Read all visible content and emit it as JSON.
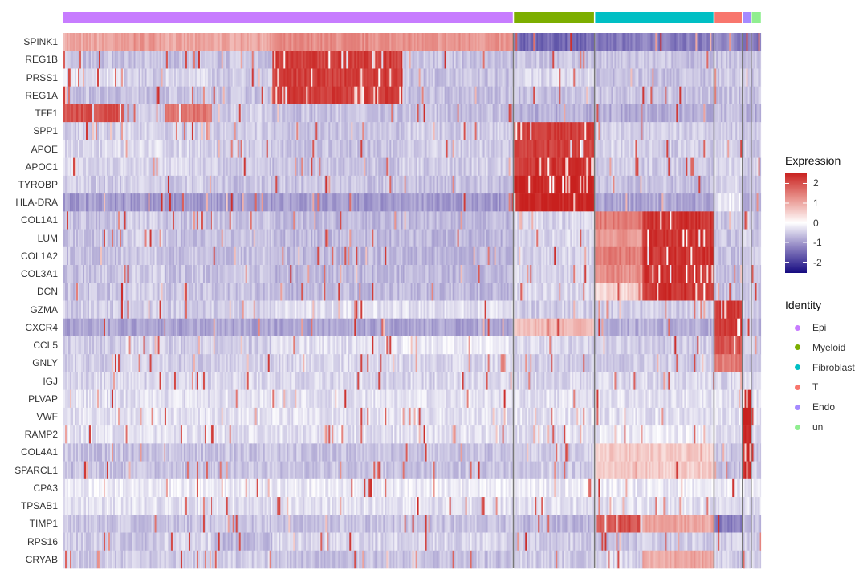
{
  "chart_data": {
    "type": "heatmap",
    "title": "",
    "genes": [
      "SPINK1",
      "REG1B",
      "PRSS1",
      "REG1A",
      "TFF1",
      "SPP1",
      "APOE",
      "APOC1",
      "TYROBP",
      "HLA-DRA",
      "COL1A1",
      "LUM",
      "COL1A2",
      "COL3A1",
      "DCN",
      "GZMA",
      "CXCR4",
      "CCL5",
      "GNLY",
      "IGJ",
      "PLVAP",
      "VWF",
      "RAMP2",
      "COL4A1",
      "SPARCL1",
      "CPA3",
      "TPSAB1",
      "TIMP1",
      "RPS16",
      "CRYAB"
    ],
    "groups": [
      {
        "name": "Epi",
        "color": "#C77CFF",
        "cell_fraction": 0.646
      },
      {
        "name": "Myeloid",
        "color": "#7CAE00",
        "cell_fraction": 0.115
      },
      {
        "name": "Fibroblast",
        "color": "#00BFC4",
        "cell_fraction": 0.17
      },
      {
        "name": "T",
        "color": "#F8766D",
        "cell_fraction": 0.039
      },
      {
        "name": "Endo",
        "color": "#A58AFF",
        "cell_fraction": 0.011
      },
      {
        "name": "un",
        "color": "#90EE90",
        "cell_fraction": 0.013
      }
    ],
    "segments": [
      {
        "group": "Epi",
        "fraction_of_group": 0.135
      },
      {
        "group": "Epi",
        "fraction_of_group": 0.09
      },
      {
        "group": "Epi",
        "fraction_of_group": 0.105
      },
      {
        "group": "Epi",
        "fraction_of_group": 0.135
      },
      {
        "group": "Epi",
        "fraction_of_group": 0.29
      },
      {
        "group": "Epi",
        "fraction_of_group": 0.245
      },
      {
        "group": "Myeloid",
        "fraction_of_group": 1
      },
      {
        "group": "Fibroblast",
        "fraction_of_group": 0.4
      },
      {
        "group": "Fibroblast",
        "fraction_of_group": 0.6
      },
      {
        "group": "T",
        "fraction_of_group": 1
      },
      {
        "group": "Endo",
        "fraction_of_group": 1
      },
      {
        "group": "un",
        "fraction_of_group": 1
      }
    ],
    "mean_expression": [
      [
        1.0,
        1.2,
        1.0,
        1.0,
        1.3,
        1.2,
        -1.5,
        -1.3,
        -1.3,
        -1.2,
        -1.3,
        -1.3
      ],
      [
        -0.6,
        -0.6,
        -0.6,
        -0.6,
        2.2,
        -0.6,
        -0.6,
        -0.6,
        -0.6,
        -0.6,
        -0.6,
        -0.6
      ],
      [
        -0.3,
        -0.5,
        -0.4,
        -0.5,
        2.2,
        -0.6,
        -0.4,
        -0.6,
        -0.6,
        -0.5,
        -0.6,
        -0.6
      ],
      [
        -0.6,
        -0.6,
        -0.6,
        -0.6,
        2.2,
        -0.6,
        -0.6,
        -0.6,
        -0.6,
        -0.6,
        -0.6,
        -0.6
      ],
      [
        2.0,
        -0.5,
        1.6,
        -0.5,
        -0.6,
        -0.6,
        -0.8,
        -0.8,
        -0.8,
        -0.7,
        -0.8,
        -0.8
      ],
      [
        -0.5,
        -0.4,
        -0.5,
        -0.5,
        -0.6,
        -0.5,
        2.2,
        -0.5,
        -0.5,
        -0.5,
        -0.6,
        -0.6
      ],
      [
        -0.4,
        -0.3,
        -0.4,
        -0.5,
        -0.6,
        -0.5,
        2.2,
        -0.4,
        -0.5,
        -0.4,
        -0.5,
        -0.5
      ],
      [
        -0.4,
        -0.4,
        -0.4,
        -0.5,
        -0.6,
        -0.5,
        2.3,
        -0.5,
        -0.5,
        -0.4,
        -0.5,
        -0.5
      ],
      [
        -0.5,
        -0.5,
        -0.5,
        -0.6,
        -0.6,
        -0.6,
        2.5,
        -0.6,
        -0.6,
        -0.4,
        -0.6,
        -0.6
      ],
      [
        -1.0,
        -1.0,
        -1.0,
        -1.0,
        -1.0,
        -1.0,
        2.5,
        -0.9,
        -0.9,
        -0.2,
        -0.8,
        -0.8
      ],
      [
        -0.6,
        -0.5,
        -0.6,
        -0.6,
        -0.7,
        -0.7,
        -0.4,
        1.5,
        2.3,
        -0.6,
        -0.5,
        -0.6
      ],
      [
        -0.6,
        -0.5,
        -0.6,
        -0.6,
        -0.7,
        -0.7,
        -0.4,
        1.2,
        2.3,
        -0.6,
        -0.5,
        -0.6
      ],
      [
        -0.6,
        -0.5,
        -0.6,
        -0.6,
        -0.7,
        -0.7,
        -0.4,
        1.5,
        2.3,
        -0.6,
        -0.5,
        -0.6
      ],
      [
        -0.6,
        -0.5,
        -0.6,
        -0.6,
        -0.7,
        -0.7,
        -0.4,
        1.3,
        2.3,
        -0.6,
        -0.5,
        -0.6
      ],
      [
        -0.6,
        -0.5,
        -0.6,
        -0.6,
        -0.7,
        -0.7,
        -0.4,
        0.5,
        2.3,
        -0.6,
        -0.5,
        -0.6
      ],
      [
        -0.5,
        -0.5,
        -0.5,
        -0.5,
        -0.3,
        -0.3,
        -0.5,
        -0.5,
        -0.5,
        2.2,
        -0.5,
        -0.5
      ],
      [
        -0.9,
        -0.9,
        -0.9,
        -0.9,
        -0.9,
        -0.9,
        0.8,
        -0.8,
        -0.8,
        2.2,
        -0.6,
        -0.7
      ],
      [
        -0.5,
        -0.4,
        -0.5,
        -0.5,
        -0.3,
        -0.2,
        -0.4,
        -0.5,
        -0.5,
        2.0,
        -0.5,
        -0.5
      ],
      [
        -0.5,
        -0.4,
        -0.5,
        -0.5,
        -0.4,
        -0.4,
        -0.5,
        -0.5,
        -0.5,
        1.5,
        -0.5,
        -0.5
      ],
      [
        -0.4,
        -0.4,
        -0.4,
        -0.4,
        -0.4,
        -0.4,
        -0.4,
        -0.4,
        -0.4,
        -0.4,
        -0.4,
        -0.4
      ],
      [
        -0.3,
        -0.3,
        -0.3,
        -0.3,
        -0.3,
        -0.3,
        -0.3,
        -0.3,
        -0.3,
        -0.3,
        2.5,
        -0.3
      ],
      [
        -0.3,
        -0.3,
        -0.3,
        -0.3,
        -0.3,
        -0.3,
        -0.3,
        -0.3,
        -0.3,
        -0.3,
        2.5,
        -0.3
      ],
      [
        -0.3,
        -0.3,
        -0.3,
        -0.3,
        -0.3,
        -0.3,
        -0.3,
        -0.2,
        -0.2,
        -0.3,
        2.5,
        -0.3
      ],
      [
        -0.6,
        -0.6,
        -0.6,
        -0.6,
        -0.6,
        -0.6,
        -0.5,
        0.6,
        0.6,
        -0.6,
        2.5,
        -0.5
      ],
      [
        -0.6,
        -0.6,
        -0.6,
        -0.6,
        -0.6,
        -0.6,
        -0.5,
        0.6,
        0.6,
        -0.6,
        2.5,
        -0.5
      ],
      [
        -0.2,
        -0.2,
        -0.2,
        -0.2,
        -0.2,
        -0.2,
        -0.2,
        -0.2,
        -0.2,
        -0.2,
        -0.2,
        -0.2
      ],
      [
        -0.3,
        -0.3,
        -0.3,
        -0.3,
        -0.3,
        -0.3,
        -0.3,
        -0.3,
        -0.3,
        -0.3,
        -0.3,
        -0.3
      ],
      [
        -0.6,
        -0.6,
        -0.6,
        -0.6,
        -0.6,
        -0.6,
        -0.7,
        2.0,
        1.0,
        -1.3,
        -0.6,
        -0.6
      ],
      [
        -0.5,
        -0.6,
        -0.4,
        -0.7,
        -0.4,
        -0.4,
        -0.5,
        -0.6,
        -0.5,
        -0.5,
        -0.5,
        -0.5
      ],
      [
        -0.5,
        -0.5,
        -0.5,
        -0.5,
        -0.6,
        -0.6,
        -0.5,
        -0.4,
        1.0,
        -0.5,
        -0.5,
        -0.5
      ]
    ],
    "color_scale": {
      "title": "Expression",
      "low": "#150A80",
      "mid": "#FFFFFF",
      "high": "#C8201E",
      "ticks": [
        2,
        1,
        0,
        -1,
        -2
      ]
    },
    "legend": {
      "identity_title": "Identity",
      "placement": "right"
    }
  }
}
